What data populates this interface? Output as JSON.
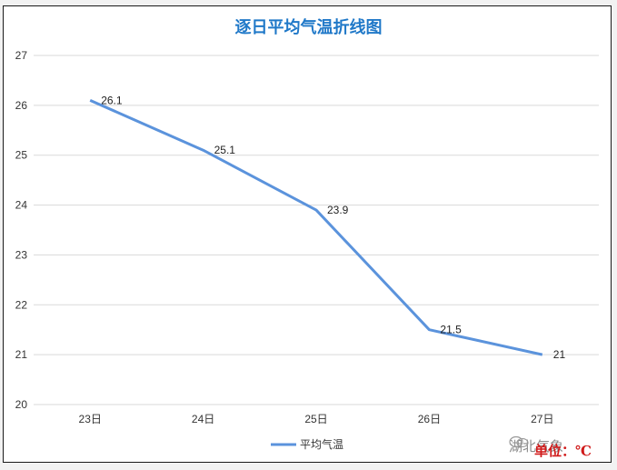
{
  "chart_data": {
    "type": "line",
    "title": "逐日平均气温折线图",
    "categories": [
      "23日",
      "24日",
      "25日",
      "26日",
      "27日"
    ],
    "series": [
      {
        "name": "平均气温",
        "values": [
          26.1,
          25.1,
          23.9,
          21.5,
          21
        ],
        "labels": [
          "26.1",
          "25.1",
          "23.9",
          "21.5",
          "21"
        ],
        "color": "#5b93dc"
      }
    ],
    "ylim": [
      20,
      27
    ],
    "yticks": [
      20,
      21,
      22,
      23,
      24,
      25,
      26,
      27
    ],
    "grid": true,
    "legend": "bottom-center"
  },
  "unit_label": "单位：℃",
  "watermark": "湖北气象"
}
